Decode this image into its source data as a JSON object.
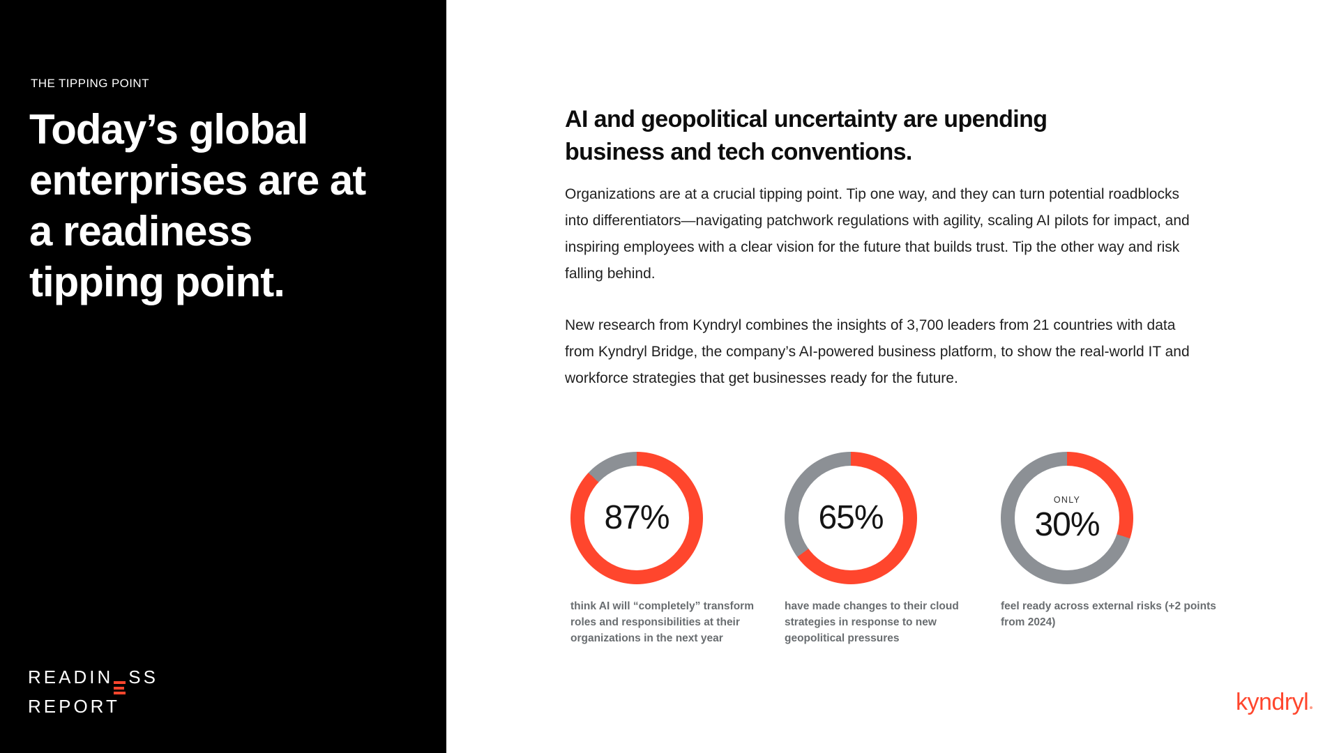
{
  "colors": {
    "accent": "#FF462D",
    "donut_gray": "#8C9095",
    "panel_bg": "#000000",
    "page_bg": "#FFFFFF",
    "heading_dark": "#0D0D0D",
    "body_text": "#1F1F1F",
    "caption_gray": "#696D70",
    "prefix_dark": "#2E2E2E",
    "value_dark": "#141414",
    "logo_dot": "#FF9C86"
  },
  "left_panel": {
    "eyebrow": "THE TIPPING POINT",
    "heading_lines": [
      "Today’s global",
      "enterprises are at",
      "a readiness",
      "tipping point."
    ],
    "logo": {
      "line1_pre": "READIN",
      "line1_post": "SS",
      "line2": "REPORT",
      "stylized_letter": "E-as-three-orange-bars"
    }
  },
  "right_panel": {
    "heading_lines": [
      "AI and geopolitical uncertainty are upending",
      "business and tech conventions."
    ],
    "paragraphs": [
      "Organizations are at a crucial tipping point. Tip one way, and they can turn potential roadblocks into differentiators—navigating patchwork regulations with agility, scaling AI pilots for impact, and inspiring employees with a clear vision for the future that builds trust. Tip the other way and risk falling behind.",
      "New research from Kyndryl combines the insights of 3,700 leaders from 21 countries with data from Kyndryl Bridge, the company’s AI-powered business platform, to show the real-world IT and workforce strategies that get businesses ready for the future."
    ],
    "brand": "kyndryl"
  },
  "chart_data": [
    {
      "type": "donut",
      "value": 87,
      "label": "87%",
      "caption": "think AI will “completely” transform roles and responsibilities at their organizations in the next year",
      "segment_color": "#FF462D",
      "track_color": "#8C9095",
      "start_angle_deg": 0,
      "direction": "clockwise"
    },
    {
      "type": "donut",
      "value": 65,
      "label": "65%",
      "caption": "have made changes to their cloud strategies in response to new geopolitical pressures",
      "segment_color": "#FF462D",
      "track_color": "#8C9095",
      "start_angle_deg": 0,
      "direction": "clockwise"
    },
    {
      "type": "donut",
      "value": 30,
      "prefix": "ONLY",
      "label": "30%",
      "caption": "feel ready across external risks (+2 points from 2024)",
      "segment_color": "#FF462D",
      "track_color": "#8C9095",
      "start_angle_deg": 0,
      "direction": "clockwise"
    }
  ]
}
